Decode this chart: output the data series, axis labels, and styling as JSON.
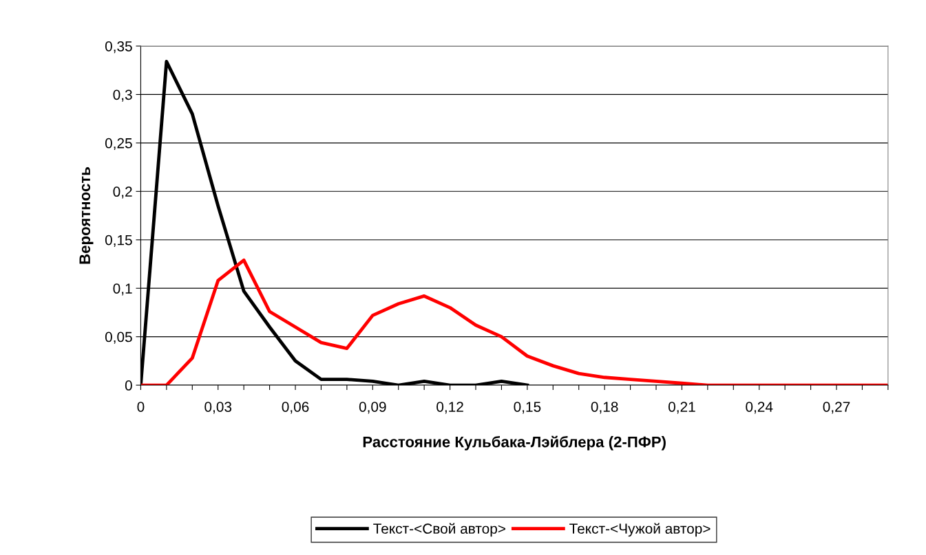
{
  "chart_data": {
    "type": "line",
    "xlabel": "Расстояние Кульбака-Лэйблера (2-ПФР)",
    "ylabel": "Вероятность",
    "categories": [
      "0",
      null,
      null,
      "0,03",
      null,
      null,
      "0,06",
      null,
      null,
      "0,09",
      null,
      null,
      "0,12",
      null,
      null,
      "0,15",
      null,
      null,
      "0,18",
      null,
      null,
      "0,21",
      null,
      null,
      "0,24",
      null,
      null,
      "0,27",
      null,
      null
    ],
    "series": [
      {
        "name": "Текст-<Свой автор>",
        "color": "#000000",
        "values": [
          0,
          0.334,
          0.28,
          0.185,
          0.097,
          0.06,
          0.025,
          0.006,
          0.006,
          0.004,
          0,
          0.004,
          0,
          0,
          0.004,
          0,
          null,
          null,
          null,
          null,
          null,
          null,
          null,
          null,
          null,
          null,
          null,
          null,
          null,
          null
        ]
      },
      {
        "name": "Текст-<Чужой автор>",
        "color": "#ff0000",
        "values": [
          0,
          0,
          0.028,
          0.108,
          0.129,
          0.076,
          0.06,
          0.044,
          0.038,
          0.072,
          0.084,
          0.092,
          0.08,
          0.062,
          0.05,
          0.03,
          0.02,
          0.012,
          0.008,
          0.006,
          0.004,
          0.002,
          0,
          0,
          0,
          0,
          0,
          0,
          0,
          0
        ]
      }
    ],
    "ylim": [
      0,
      0.35
    ],
    "yticks": [
      0,
      {
        "value": 0.05,
        "label": "0,05"
      },
      {
        "value": 0.1,
        "label": "0,1"
      },
      {
        "value": 0.15,
        "label": "0,15"
      },
      {
        "value": 0.2,
        "label": "0,2"
      },
      {
        "value": 0.25,
        "label": "0,25"
      },
      {
        "value": 0.3,
        "label": "0,3"
      },
      {
        "value": 0.35,
        "label": "0,35"
      }
    ],
    "grid": "y",
    "legend": "bottom",
    "marker": "none",
    "line_style": "solid"
  }
}
